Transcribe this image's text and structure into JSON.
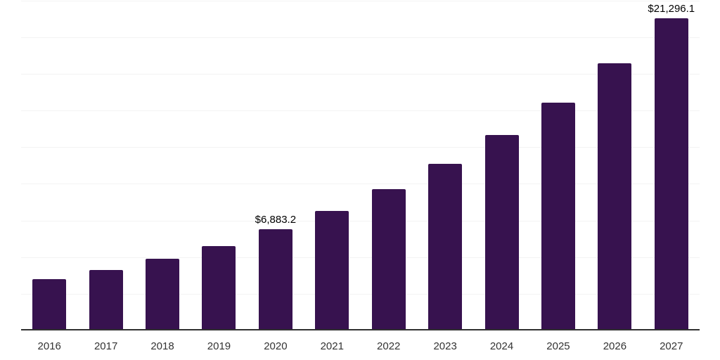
{
  "chart_data": {
    "type": "bar",
    "title": "",
    "xlabel": "",
    "ylabel": "",
    "categories": [
      "2016",
      "2017",
      "2018",
      "2019",
      "2020",
      "2021",
      "2022",
      "2023",
      "2024",
      "2025",
      "2026",
      "2027"
    ],
    "values": [
      3500,
      4120,
      4890,
      5770,
      6883.2,
      8130,
      9630,
      11360,
      13310,
      15540,
      18230,
      21296.1
    ],
    "data_labels": [
      {
        "category": "2020",
        "text": "$6,883.2"
      },
      {
        "category": "2027",
        "text": "$21,296.1"
      }
    ],
    "ylim": [
      0,
      22500
    ],
    "grid_step": 2500,
    "grid": true,
    "legend": false,
    "colors": {
      "bar": "#37124F",
      "axis_line": "#303030",
      "gridline": "#F3F3F3",
      "data_label_text": "#000000",
      "tick_text": "#333333",
      "background": "#FFFFFF"
    }
  }
}
